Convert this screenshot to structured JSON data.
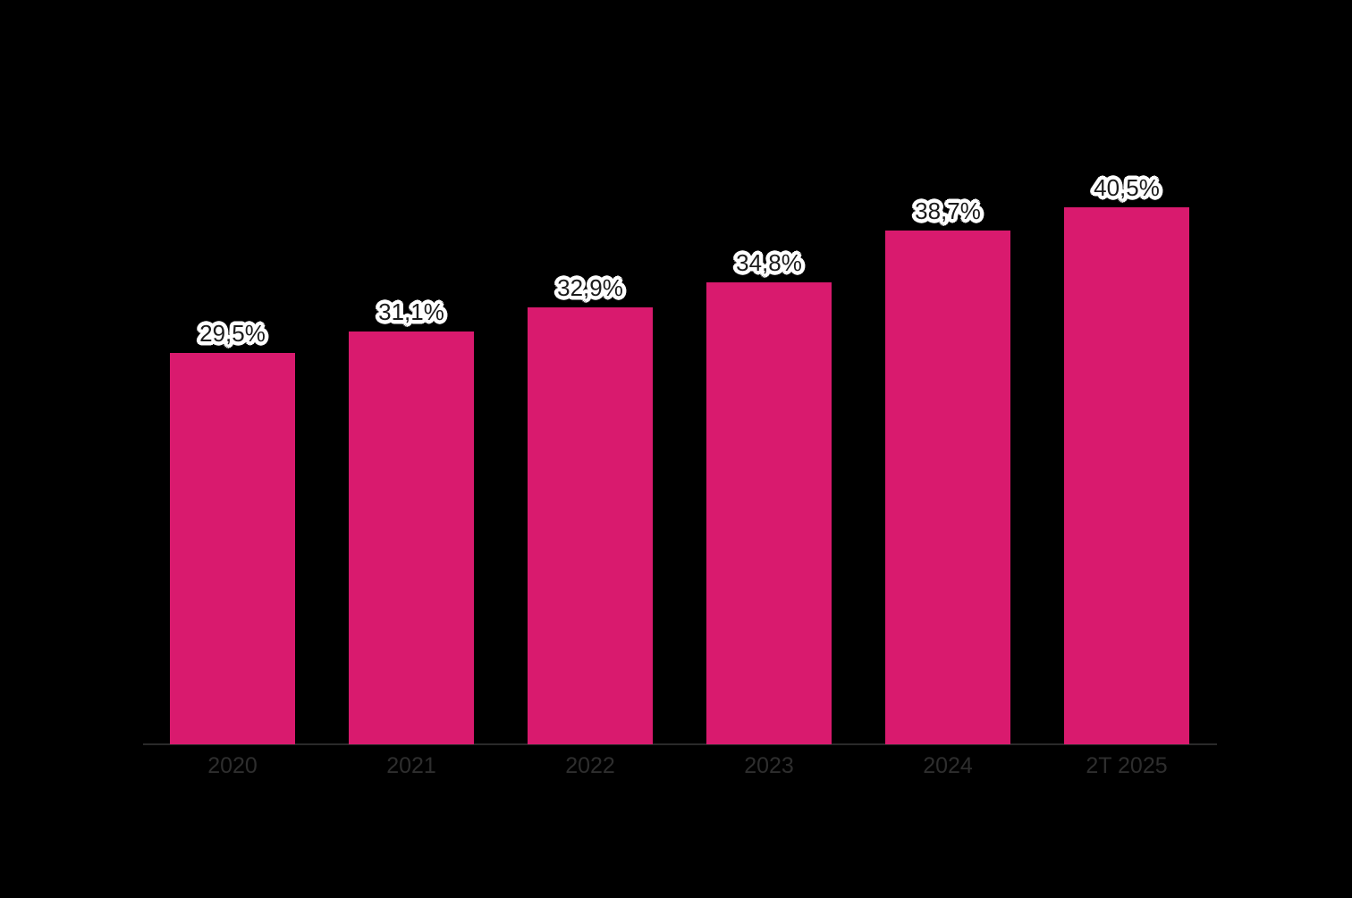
{
  "chart_data": {
    "type": "bar",
    "categories": [
      "2020",
      "2021",
      "2022",
      "2023",
      "2024",
      "2T 2025"
    ],
    "values": [
      29.5,
      31.1,
      32.9,
      34.8,
      38.7,
      40.5
    ],
    "value_labels": [
      "29,5%",
      "31,1%",
      "32,9%",
      "34,8%",
      "38,7%",
      "40,5%"
    ],
    "title": "",
    "xlabel": "",
    "ylabel": "",
    "ylim": [
      0,
      56
    ],
    "grid": false,
    "legend": "none",
    "colors": {
      "bar": "#D91A6E",
      "background": "#000000",
      "data_label_text": "#1B1B1B",
      "data_label_halo": "#FFFFFF",
      "tick_label_text": "#2E2E2E",
      "axis_line": "#2A2A2A"
    }
  }
}
